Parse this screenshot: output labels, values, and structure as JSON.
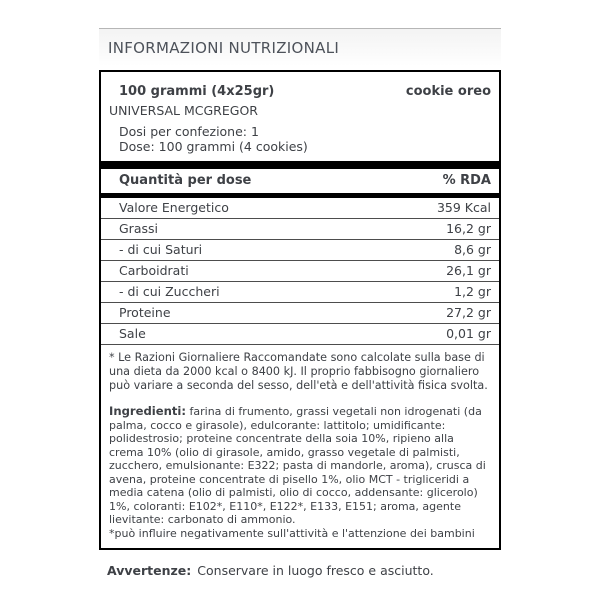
{
  "header": {
    "title": "INFORMAZIONI NUTRIZIONALI"
  },
  "product": {
    "serving_size": "100 grammi (4x25gr)",
    "flavor": "cookie oreo",
    "brand": "UNIVERSAL MCGREGOR",
    "servings_per_pack": "Dosi per confezione: 1",
    "dose": "Dose: 100 grammi (4 cookies)"
  },
  "table": {
    "header_left": "Quantità per dose",
    "header_right": "% RDA",
    "rows": [
      {
        "name": "Valore Energetico",
        "value": "359 Kcal"
      },
      {
        "name": "Grassi",
        "value": "16,2 gr"
      },
      {
        "name": "- di cui Saturi",
        "value": "8,6 gr"
      },
      {
        "name": "Carboidrati",
        "value": "26,1 gr"
      },
      {
        "name": "- di cui Zuccheri",
        "value": "1,2 gr"
      },
      {
        "name": "Proteine",
        "value": "27,2 gr"
      },
      {
        "name": "Sale",
        "value": "0,01 gr"
      }
    ]
  },
  "footnote": "* Le Razioni Giornaliere Raccomandate sono calcolate sulla base di una dieta da 2000 kcal o 8400 kJ. Il proprio fabbisogno giornaliero può variare a seconda del sesso, dell'età e dell'attività fisica svolta.",
  "ingredients": {
    "label": "Ingredienti:",
    "text": "farina di frumento, grassi vegetali non idrogenati (da palma, cocco e girasole), edulcorante: lattitolo; umidificante: polidestrosio; proteine concentrate della soia 10%, ripieno alla crema 10% (olio di girasole, amido, grasso vegetale di palmisti, zucchero, emulsionante: E322; pasta di mandorle, aroma), crusca di avena, proteine concentrate di pisello 1%, olio MCT - trigliceridi a media catena (olio di palmisti, olio di cocco, addensante: glicerolo) 1%, coloranti: E102*, E110*, E122*, E133, E151; aroma, agente lievitante: carbonato di ammonio.",
    "note": "*può influire negativamente sull'attività e l'attenzione dei bambini"
  },
  "warnings": {
    "label": "Avvertenze:",
    "text": "Conservare in luogo fresco e asciutto."
  },
  "colors": {
    "title_color": "#4d525a",
    "text_color": "#3e4146",
    "bar_color": "#000000",
    "band_border": "#b6b6b6",
    "row_separator": "#4d4d4d"
  }
}
